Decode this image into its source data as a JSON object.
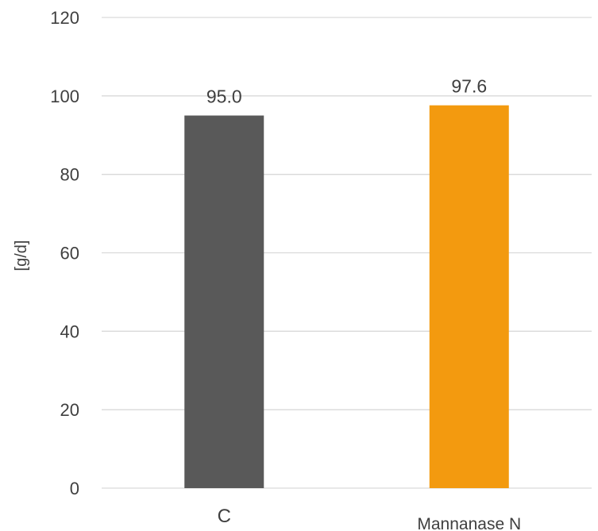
{
  "chart_data": {
    "type": "bar",
    "title": "",
    "xlabel": "",
    "ylabel": "[g/d]",
    "categories": [
      "C",
      "Mannanase N"
    ],
    "values": [
      95.0,
      97.6
    ],
    "data_labels": [
      "95.0",
      "97.6"
    ],
    "ylim": [
      0,
      120
    ],
    "yticks": [
      0,
      20,
      40,
      60,
      80,
      100,
      120
    ],
    "grid": true,
    "legend": "none",
    "colors": [
      "#595959",
      "#f39a0f"
    ]
  }
}
